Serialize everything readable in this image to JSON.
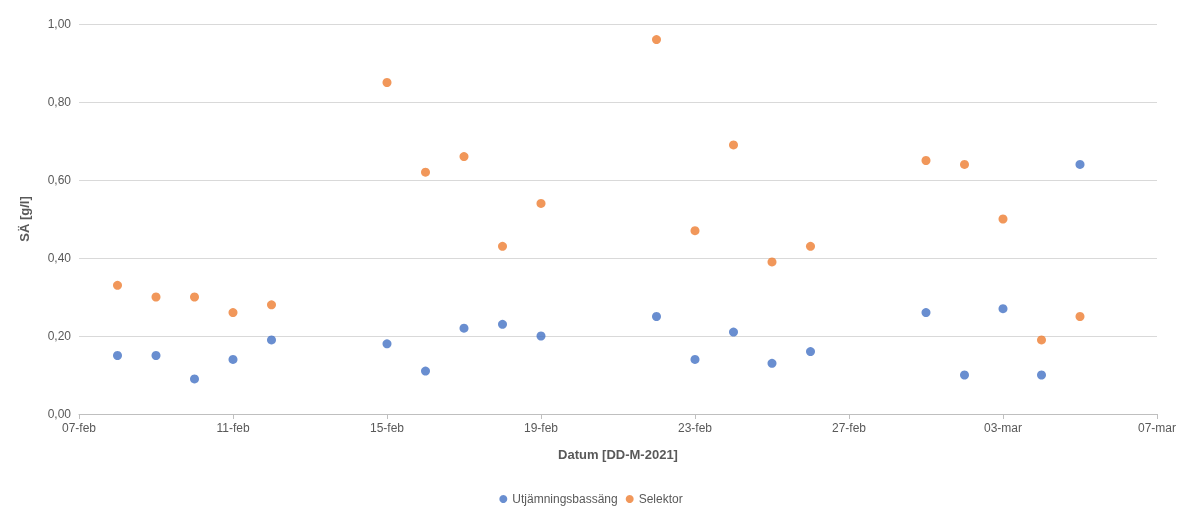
{
  "chart_data": {
    "type": "scatter",
    "xlabel": "Datum [DD-M-2021]",
    "ylabel": "SÄ [g/l]",
    "x": [
      "2021-02-08",
      "2021-02-09",
      "2021-02-10",
      "2021-02-11",
      "2021-02-12",
      "2021-02-15",
      "2021-02-16",
      "2021-02-17",
      "2021-02-18",
      "2021-02-19",
      "2021-02-22",
      "2021-02-23",
      "2021-02-24",
      "2021-02-25",
      "2021-02-26",
      "2021-03-01",
      "2021-03-02",
      "2021-03-03",
      "2021-03-04",
      "2021-03-05"
    ],
    "series": [
      {
        "name": "Utjämningsbassäng",
        "color": "#4472c4",
        "values": [
          0.15,
          0.15,
          0.09,
          0.14,
          0.19,
          0.18,
          0.11,
          0.22,
          0.23,
          0.2,
          0.25,
          0.14,
          0.21,
          0.13,
          0.16,
          0.26,
          0.1,
          0.27,
          0.1,
          0.64
        ]
      },
      {
        "name": "Selektor",
        "color": "#ed7d31",
        "values": [
          0.33,
          0.3,
          0.3,
          0.26,
          0.28,
          0.85,
          0.62,
          0.66,
          0.43,
          0.54,
          0.96,
          0.47,
          0.69,
          0.39,
          0.43,
          0.65,
          0.64,
          0.5,
          0.19,
          0.25
        ]
      }
    ],
    "xlim": [
      "2021-02-07",
      "2021-03-07"
    ],
    "xticks": [
      {
        "value": "2021-02-07",
        "label": "07-feb"
      },
      {
        "value": "2021-02-11",
        "label": "11-feb"
      },
      {
        "value": "2021-02-15",
        "label": "15-feb"
      },
      {
        "value": "2021-02-19",
        "label": "19-feb"
      },
      {
        "value": "2021-02-23",
        "label": "23-feb"
      },
      {
        "value": "2021-02-27",
        "label": "27-feb"
      },
      {
        "value": "2021-03-03",
        "label": "03-mar"
      },
      {
        "value": "2021-03-07",
        "label": "07-mar"
      }
    ],
    "ylim": [
      0,
      1
    ],
    "yticks": [
      {
        "value": 0,
        "label": "0,00"
      },
      {
        "value": 0.2,
        "label": "0,20"
      },
      {
        "value": 0.4,
        "label": "0,40"
      },
      {
        "value": 0.6,
        "label": "0,60"
      },
      {
        "value": 0.8,
        "label": "0,80"
      },
      {
        "value": 1,
        "label": "1,00"
      }
    ],
    "grid": "y",
    "legend": "bottom",
    "marker": "circle"
  }
}
